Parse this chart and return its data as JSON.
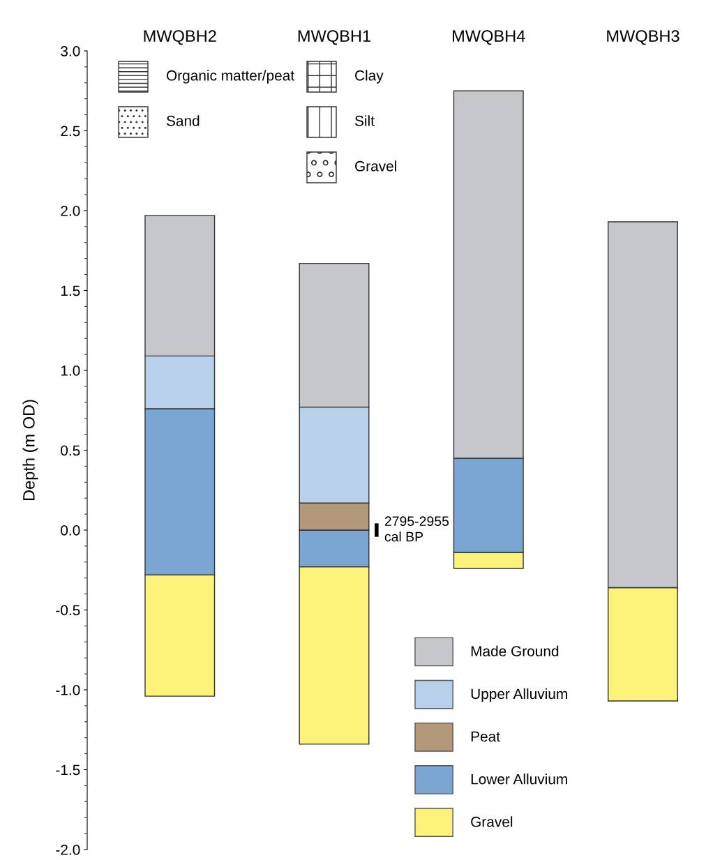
{
  "chart_data": {
    "type": "bar",
    "ylabel": "Depth (m OD)",
    "categories": [
      "MWQBH2",
      "MWQBH1",
      "MWQBH4",
      "MWQBH3"
    ],
    "series": [
      {
        "name": "Gravel",
        "color": "#fdf27a",
        "base": [
          -1.04,
          -1.34,
          -0.24,
          -1.07
        ],
        "values": [
          0.76,
          1.11,
          0.1,
          0.71
        ]
      },
      {
        "name": "Lower Alluvium",
        "color": "#7ba6d4",
        "base": [
          -0.28,
          -0.23,
          -0.14,
          null
        ],
        "values": [
          1.04,
          0.23,
          0.59,
          null
        ]
      },
      {
        "name": "Peat",
        "color": "#b3987a",
        "base": [
          null,
          0.0,
          null,
          null
        ],
        "values": [
          null,
          0.17,
          null,
          null
        ]
      },
      {
        "name": "Upper Alluvium",
        "color": "#b8d0ea",
        "base": [
          0.76,
          0.17,
          null,
          null
        ],
        "values": [
          0.33,
          0.6,
          null,
          null
        ]
      },
      {
        "name": "Made Ground",
        "color": "#c6c7ca",
        "base": [
          1.09,
          0.77,
          0.45,
          -0.36
        ],
        "values": [
          0.88,
          0.9,
          2.3,
          2.29
        ]
      }
    ],
    "ylim": [
      -2.0,
      3.0
    ],
    "yticks": [
      {
        "value": -2.0,
        "label": "-2.0"
      },
      {
        "value": -1.5,
        "label": "-1.5"
      },
      {
        "value": -1.0,
        "label": "-1.0"
      },
      {
        "value": -0.5,
        "label": "-0.5"
      },
      {
        "value": 0.0,
        "label": "0.0"
      },
      {
        "value": 0.5,
        "label": "0.5"
      },
      {
        "value": 1.0,
        "label": "1.0"
      },
      {
        "value": 1.5,
        "label": "1.5"
      },
      {
        "value": 2.0,
        "label": "2.0"
      },
      {
        "value": 2.5,
        "label": "2.5"
      },
      {
        "value": 3.0,
        "label": "3.0"
      }
    ],
    "legend": "bottom right",
    "annotations": [
      "Organic matter/peat",
      "Sand",
      "Clay",
      "Silt",
      "Gravel",
      "2795-2955\ncal BP"
    ]
  }
}
